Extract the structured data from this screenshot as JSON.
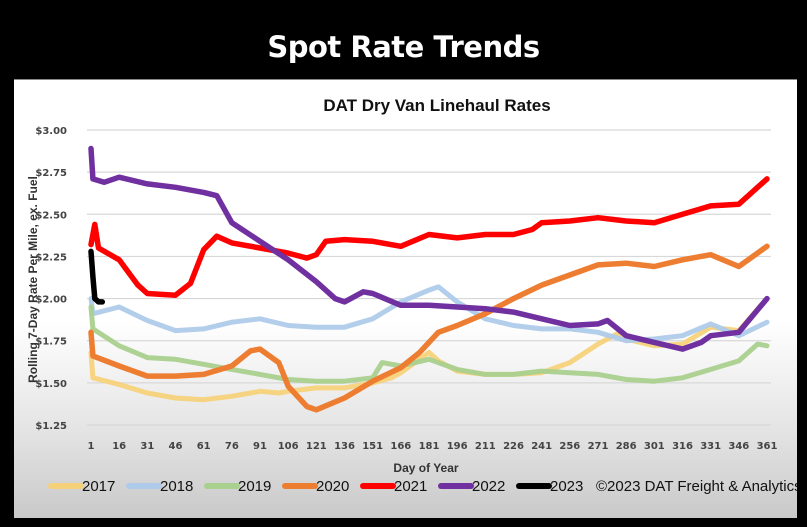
{
  "slide": {
    "title": "Spot Rate Trends"
  },
  "chart_data": {
    "type": "line",
    "title": "DAT Dry Van Linehaul Rates",
    "xlabel": "Day of Year",
    "ylabel": "Rolling 7-Day Rate Per Mile, ex. Fuel",
    "xlim": [
      1,
      361
    ],
    "ylim": [
      1.25,
      3.0
    ],
    "grid": true,
    "legend_position": "bottom",
    "x_ticks": [
      1,
      16,
      31,
      46,
      61,
      76,
      91,
      106,
      121,
      136,
      151,
      166,
      181,
      196,
      211,
      226,
      241,
      256,
      271,
      286,
      301,
      316,
      331,
      346,
      361
    ],
    "y_ticks": [
      {
        "value": 3.0,
        "label": "$3.00"
      },
      {
        "value": 2.75,
        "label": "$2.75"
      },
      {
        "value": 2.5,
        "label": "$2.50"
      },
      {
        "value": 2.25,
        "label": "$2.25"
      },
      {
        "value": 2.0,
        "label": "$2.00"
      },
      {
        "value": 1.75,
        "label": "$1.75"
      },
      {
        "value": 1.5,
        "label": "$1.50"
      },
      {
        "value": 1.25,
        "label": "$1.25"
      }
    ],
    "annotation": "©2023 DAT Freight & Analytics",
    "series": [
      {
        "name": "2017",
        "color": "#f5d27a",
        "points": [
          [
            1,
            1.68
          ],
          [
            2,
            1.53
          ],
          [
            16,
            1.49
          ],
          [
            31,
            1.44
          ],
          [
            46,
            1.41
          ],
          [
            61,
            1.4
          ],
          [
            76,
            1.42
          ],
          [
            91,
            1.45
          ],
          [
            101,
            1.44
          ],
          [
            106,
            1.45
          ],
          [
            121,
            1.47
          ],
          [
            136,
            1.47
          ],
          [
            151,
            1.5
          ],
          [
            161,
            1.53
          ],
          [
            166,
            1.56
          ],
          [
            181,
            1.68
          ],
          [
            186,
            1.63
          ],
          [
            196,
            1.57
          ],
          [
            211,
            1.55
          ],
          [
            226,
            1.55
          ],
          [
            241,
            1.56
          ],
          [
            251,
            1.6
          ],
          [
            256,
            1.62
          ],
          [
            271,
            1.73
          ],
          [
            281,
            1.79
          ],
          [
            286,
            1.76
          ],
          [
            301,
            1.72
          ],
          [
            316,
            1.73
          ],
          [
            331,
            1.83
          ],
          [
            346,
            1.81
          ],
          [
            361,
            2.0
          ]
        ]
      },
      {
        "name": "2018",
        "color": "#aecbea",
        "points": [
          [
            1,
            2.0
          ],
          [
            2,
            1.91
          ],
          [
            16,
            1.95
          ],
          [
            31,
            1.87
          ],
          [
            46,
            1.81
          ],
          [
            61,
            1.82
          ],
          [
            76,
            1.86
          ],
          [
            91,
            1.88
          ],
          [
            106,
            1.84
          ],
          [
            121,
            1.83
          ],
          [
            136,
            1.83
          ],
          [
            151,
            1.88
          ],
          [
            166,
            1.98
          ],
          [
            181,
            2.05
          ],
          [
            186,
            2.07
          ],
          [
            196,
            1.98
          ],
          [
            211,
            1.88
          ],
          [
            226,
            1.84
          ],
          [
            241,
            1.82
          ],
          [
            256,
            1.82
          ],
          [
            271,
            1.8
          ],
          [
            286,
            1.75
          ],
          [
            301,
            1.76
          ],
          [
            316,
            1.78
          ],
          [
            331,
            1.85
          ],
          [
            346,
            1.78
          ],
          [
            361,
            1.86
          ]
        ]
      },
      {
        "name": "2019",
        "color": "#a9d08e",
        "points": [
          [
            1,
            1.95
          ],
          [
            2,
            1.82
          ],
          [
            16,
            1.72
          ],
          [
            31,
            1.65
          ],
          [
            46,
            1.64
          ],
          [
            61,
            1.61
          ],
          [
            76,
            1.58
          ],
          [
            91,
            1.55
          ],
          [
            106,
            1.52
          ],
          [
            121,
            1.51
          ],
          [
            136,
            1.51
          ],
          [
            151,
            1.53
          ],
          [
            156,
            1.62
          ],
          [
            166,
            1.6
          ],
          [
            181,
            1.64
          ],
          [
            196,
            1.58
          ],
          [
            211,
            1.55
          ],
          [
            226,
            1.55
          ],
          [
            241,
            1.57
          ],
          [
            256,
            1.56
          ],
          [
            271,
            1.55
          ],
          [
            286,
            1.52
          ],
          [
            301,
            1.51
          ],
          [
            316,
            1.53
          ],
          [
            331,
            1.58
          ],
          [
            346,
            1.63
          ],
          [
            356,
            1.73
          ],
          [
            361,
            1.72
          ]
        ]
      },
      {
        "name": "2020",
        "color": "#ed7d31",
        "points": [
          [
            1,
            1.8
          ],
          [
            2,
            1.66
          ],
          [
            16,
            1.6
          ],
          [
            31,
            1.54
          ],
          [
            46,
            1.54
          ],
          [
            61,
            1.55
          ],
          [
            76,
            1.6
          ],
          [
            86,
            1.69
          ],
          [
            91,
            1.7
          ],
          [
            101,
            1.62
          ],
          [
            106,
            1.48
          ],
          [
            116,
            1.36
          ],
          [
            121,
            1.34
          ],
          [
            136,
            1.41
          ],
          [
            151,
            1.51
          ],
          [
            166,
            1.59
          ],
          [
            176,
            1.68
          ],
          [
            186,
            1.8
          ],
          [
            196,
            1.84
          ],
          [
            211,
            1.91
          ],
          [
            226,
            2.0
          ],
          [
            241,
            2.08
          ],
          [
            256,
            2.14
          ],
          [
            271,
            2.2
          ],
          [
            286,
            2.21
          ],
          [
            301,
            2.19
          ],
          [
            316,
            2.23
          ],
          [
            331,
            2.26
          ],
          [
            346,
            2.19
          ],
          [
            361,
            2.31
          ]
        ]
      },
      {
        "name": "2021",
        "color": "#ff0000",
        "points": [
          [
            1,
            2.32
          ],
          [
            3,
            2.44
          ],
          [
            5,
            2.3
          ],
          [
            16,
            2.23
          ],
          [
            26,
            2.08
          ],
          [
            31,
            2.03
          ],
          [
            46,
            2.02
          ],
          [
            54,
            2.09
          ],
          [
            61,
            2.29
          ],
          [
            68,
            2.37
          ],
          [
            76,
            2.33
          ],
          [
            91,
            2.3
          ],
          [
            106,
            2.27
          ],
          [
            116,
            2.24
          ],
          [
            121,
            2.26
          ],
          [
            126,
            2.34
          ],
          [
            136,
            2.35
          ],
          [
            151,
            2.34
          ],
          [
            166,
            2.31
          ],
          [
            181,
            2.38
          ],
          [
            196,
            2.36
          ],
          [
            211,
            2.38
          ],
          [
            226,
            2.38
          ],
          [
            236,
            2.41
          ],
          [
            241,
            2.45
          ],
          [
            256,
            2.46
          ],
          [
            271,
            2.48
          ],
          [
            286,
            2.46
          ],
          [
            301,
            2.45
          ],
          [
            316,
            2.5
          ],
          [
            331,
            2.55
          ],
          [
            346,
            2.56
          ],
          [
            361,
            2.71
          ]
        ]
      },
      {
        "name": "2022",
        "color": "#7030a0",
        "points": [
          [
            1,
            2.89
          ],
          [
            2,
            2.71
          ],
          [
            8,
            2.69
          ],
          [
            16,
            2.72
          ],
          [
            31,
            2.68
          ],
          [
            46,
            2.66
          ],
          [
            61,
            2.63
          ],
          [
            68,
            2.61
          ],
          [
            76,
            2.45
          ],
          [
            91,
            2.34
          ],
          [
            106,
            2.23
          ],
          [
            121,
            2.1
          ],
          [
            131,
            2.0
          ],
          [
            136,
            1.98
          ],
          [
            146,
            2.04
          ],
          [
            151,
            2.03
          ],
          [
            166,
            1.96
          ],
          [
            181,
            1.96
          ],
          [
            196,
            1.95
          ],
          [
            211,
            1.94
          ],
          [
            226,
            1.92
          ],
          [
            241,
            1.88
          ],
          [
            256,
            1.84
          ],
          [
            271,
            1.85
          ],
          [
            276,
            1.87
          ],
          [
            286,
            1.78
          ],
          [
            301,
            1.74
          ],
          [
            316,
            1.7
          ],
          [
            326,
            1.74
          ],
          [
            331,
            1.78
          ],
          [
            346,
            1.8
          ],
          [
            361,
            2.0
          ]
        ]
      },
      {
        "name": "2023",
        "color": "#000000",
        "points": [
          [
            1,
            2.28
          ],
          [
            2,
            2.13
          ],
          [
            3,
            2.0
          ],
          [
            5,
            1.98
          ],
          [
            7,
            1.98
          ]
        ]
      }
    ]
  }
}
